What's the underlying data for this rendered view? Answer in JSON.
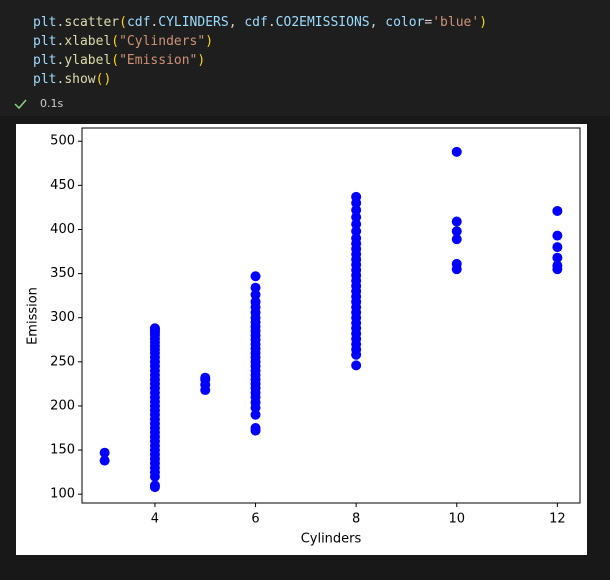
{
  "code": [
    [
      "plt",
      ".",
      "scatter",
      "(",
      "cdf",
      ".",
      "CYLINDERS",
      ", ",
      "cdf",
      ".",
      "CO2EMISSIONS",
      ", ",
      "color",
      "=",
      "'blue'",
      ")"
    ],
    [
      "plt",
      ".",
      "xlabel",
      "(",
      "\"Cylinders\"",
      ")"
    ],
    [
      "plt",
      ".",
      "ylabel",
      "(",
      "\"Emission\"",
      ")"
    ],
    [
      "plt",
      ".",
      "show",
      "(",
      ")"
    ]
  ],
  "status": "0.1s",
  "chart_data": {
    "type": "scatter",
    "xlabel": "Cylinders",
    "ylabel": "Emission",
    "color": "blue",
    "xlim": [
      2.55,
      12.45
    ],
    "ylim": [
      90,
      515
    ],
    "xticks": [
      4,
      6,
      8,
      10,
      12
    ],
    "yticks": [
      100,
      150,
      200,
      250,
      300,
      350,
      400,
      450,
      500
    ],
    "x": [
      3,
      3,
      4,
      4,
      4,
      4,
      4,
      4,
      4,
      4,
      4,
      4,
      4,
      4,
      4,
      4,
      4,
      4,
      4,
      4,
      4,
      4,
      4,
      4,
      4,
      4,
      4,
      4,
      4,
      4,
      4,
      4,
      4,
      4,
      4,
      4,
      4,
      4,
      4,
      4,
      4,
      4,
      5,
      5,
      5,
      5,
      6,
      6,
      6,
      6,
      6,
      6,
      6,
      6,
      6,
      6,
      6,
      6,
      6,
      6,
      6,
      6,
      6,
      6,
      6,
      6,
      6,
      6,
      6,
      6,
      6,
      6,
      6,
      6,
      6,
      6,
      8,
      8,
      8,
      8,
      8,
      8,
      8,
      8,
      8,
      8,
      8,
      8,
      8,
      8,
      8,
      8,
      8,
      8,
      8,
      8,
      8,
      8,
      8,
      8,
      8,
      8,
      8,
      8,
      8,
      8,
      10,
      10,
      10,
      10,
      10,
      10,
      12,
      12,
      12,
      12,
      12,
      12
    ],
    "y": [
      138,
      147,
      108,
      110,
      120,
      125,
      130,
      135,
      140,
      145,
      150,
      155,
      160,
      165,
      170,
      175,
      180,
      185,
      190,
      195,
      200,
      205,
      210,
      215,
      220,
      225,
      230,
      235,
      240,
      245,
      250,
      255,
      260,
      264,
      268,
      272,
      276,
      280,
      283,
      285,
      287,
      288,
      218,
      224,
      230,
      232,
      172,
      175,
      190,
      198,
      204,
      210,
      215,
      220,
      225,
      230,
      235,
      240,
      245,
      250,
      255,
      260,
      265,
      270,
      275,
      280,
      285,
      290,
      295,
      300,
      306,
      312,
      318,
      326,
      334,
      347,
      246,
      258,
      264,
      270,
      276,
      282,
      288,
      294,
      300,
      306,
      312,
      318,
      324,
      330,
      336,
      342,
      348,
      354,
      360,
      366,
      372,
      378,
      384,
      390,
      398,
      406,
      414,
      422,
      430,
      437,
      355,
      361,
      389,
      398,
      409,
      488,
      355,
      359,
      368,
      380,
      393,
      421
    ]
  }
}
